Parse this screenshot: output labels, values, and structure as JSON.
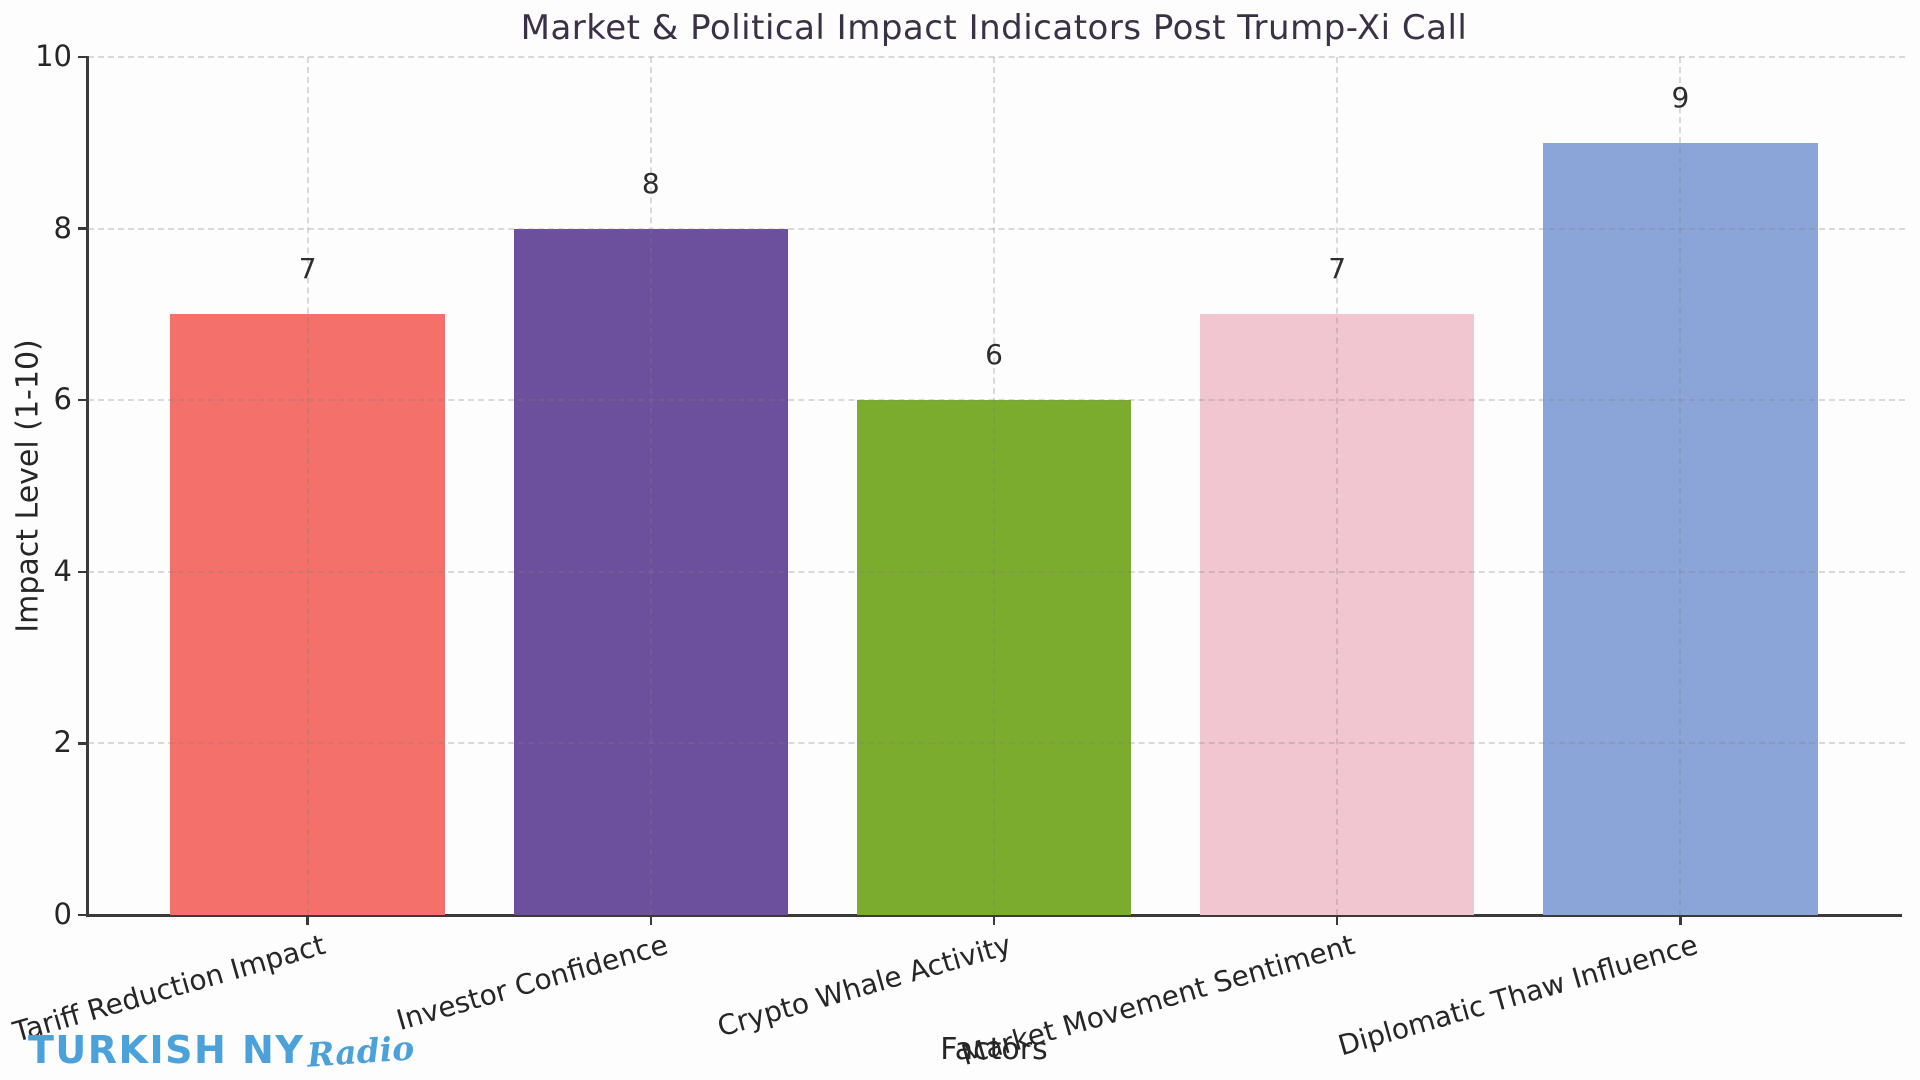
{
  "page": {
    "background_color": "#fdfdfe",
    "axis_color": "#3a3a3a",
    "text_color": "#262626",
    "title_color": "#3a3147",
    "grid_style": "dashed"
  },
  "chart_data": {
    "type": "bar",
    "title": "Market & Political Impact Indicators Post Trump-Xi Call",
    "xlabel": "Factors",
    "ylabel": "Impact Level (1-10)",
    "categories": [
      "Tariff Reduction Impact",
      "Investor Confidence",
      "Crypto Whale Activity",
      "Market Movement Sentiment",
      "Diplomatic Thaw Influence"
    ],
    "values": [
      7,
      8,
      6,
      7,
      9
    ],
    "bar_colors": [
      "#f4716b",
      "#6c4f9d",
      "#7bac2e",
      "#f2c6d0",
      "#8ba5d9"
    ],
    "ylim": [
      0,
      10
    ],
    "yticks": [
      0,
      2,
      4,
      6,
      8,
      10
    ],
    "grid": "both-dashed",
    "legend": "none",
    "value_labels_shown": true
  },
  "branding": {
    "logo_primary": "TURKISH NY",
    "logo_secondary": "Radio",
    "logo_color": "#4ba2db"
  }
}
